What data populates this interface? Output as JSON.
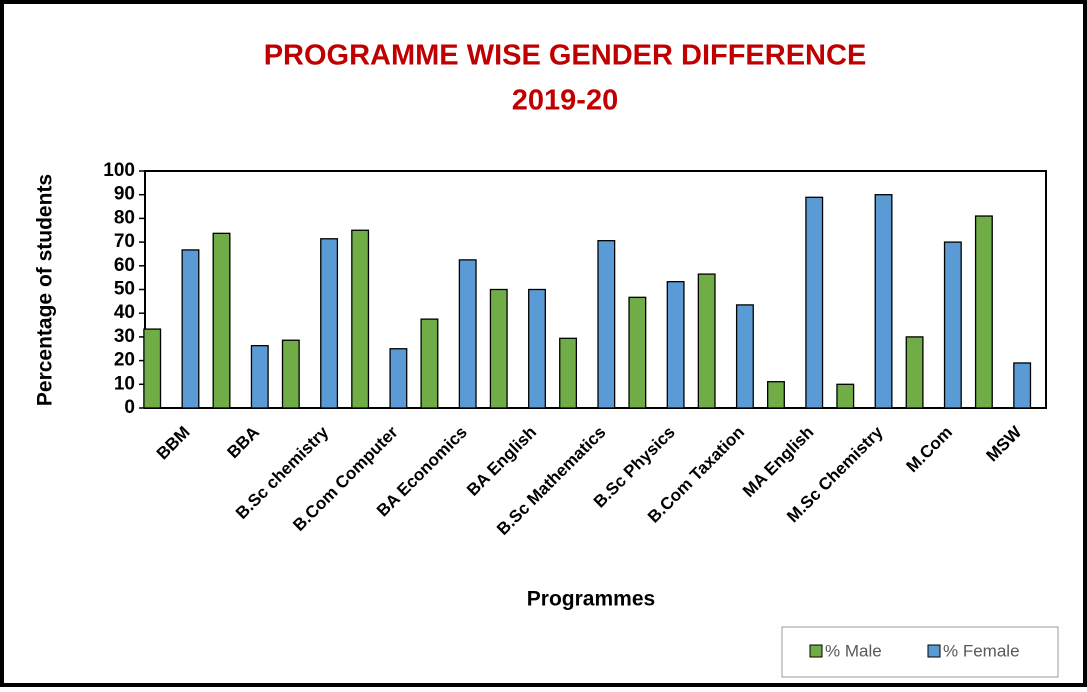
{
  "chart_data": {
    "type": "bar",
    "title": "PROGRAMME WISE GENDER DIFFERENCE",
    "subtitle": "2019-20",
    "x_label": "Programmes",
    "y_label": "Percentage of students",
    "categories": [
      "BBM",
      "BBA",
      "B.Sc chemistry",
      "B.Com Computer",
      "BA Economics",
      "BA English",
      "B.Sc Mathematics",
      "B.Sc Physics",
      "B.Com Taxation",
      "MA English",
      "M.Sc Chemistry",
      "M.Com",
      "MSW"
    ],
    "series": [
      {
        "name": "% Male",
        "color": "#70ad47",
        "values": [
          33.3,
          73.7,
          28.6,
          75,
          37.5,
          50,
          29.4,
          46.7,
          56.5,
          11.1,
          10,
          30,
          81
        ]
      },
      {
        "name": "% Female",
        "color": "#5b9bd5",
        "values": [
          66.7,
          26.3,
          71.4,
          25,
          62.5,
          50,
          70.6,
          53.3,
          43.5,
          88.9,
          90,
          70,
          19
        ]
      }
    ],
    "ylim": [
      0,
      100
    ],
    "yticks": [
      0,
      10,
      20,
      30,
      40,
      50,
      60,
      70,
      80,
      90,
      100
    ],
    "legend": "bottom-right"
  }
}
